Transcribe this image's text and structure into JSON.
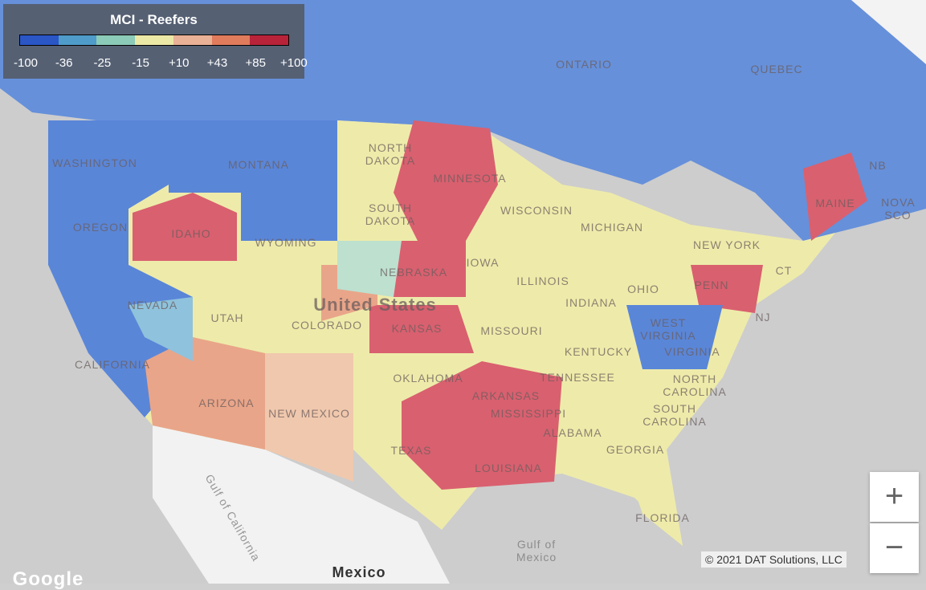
{
  "legend": {
    "title": "MCI - Reefers",
    "labels": [
      "-100",
      "-36",
      "-25",
      "-15",
      "+10",
      "+43",
      "+85",
      "+100"
    ],
    "colors": [
      "#2a56c6",
      "#4f9bc9",
      "#8ccbb8",
      "#ece8a6",
      "#e9b196",
      "#e07b5c",
      "#b8233a"
    ]
  },
  "map": {
    "labels": [
      "ONTARIO",
      "QUEBEC",
      "NB",
      "NOVA SCO",
      "WASHINGTON",
      "MONTANA",
      "NORTH DAKOTA",
      "MINNESOTA",
      "SOUTH DAKOTA",
      "WISCONSIN",
      "MICHIGAN",
      "OREGON",
      "IDAHO",
      "WYOMING",
      "IOWA",
      "NEW YORK",
      "MAINE",
      "NEBRASKA",
      "ILLINOIS",
      "OHIO",
      "PENN",
      "NEVADA",
      "UTAH",
      "COLORADO",
      "KANSAS",
      "MISSOURI",
      "INDIANA",
      "WEST VIRGINIA",
      "VIRGINIA",
      "KENTUCKY",
      "CALIFORNIA",
      "OKLAHOMA",
      "TENNESSEE",
      "NORTH CAROLINA",
      "ARIZONA",
      "NEW MEXICO",
      "ARKANSAS",
      "MISSISSIPPI",
      "ALABAMA",
      "GEORGIA",
      "SOUTH CAROLINA",
      "TEXAS",
      "LOUISIANA",
      "FLORIDA",
      "NJ",
      "CT"
    ],
    "country": "United States",
    "mexico": "Mexico",
    "gulf_mexico": "Gulf of Mexico",
    "gulf_california": "Gulf of California",
    "brand": "Google"
  },
  "controls": {
    "zoom_in": "+",
    "zoom_out": "−"
  },
  "copyright": "© 2021 DAT Solutions, LLC"
}
